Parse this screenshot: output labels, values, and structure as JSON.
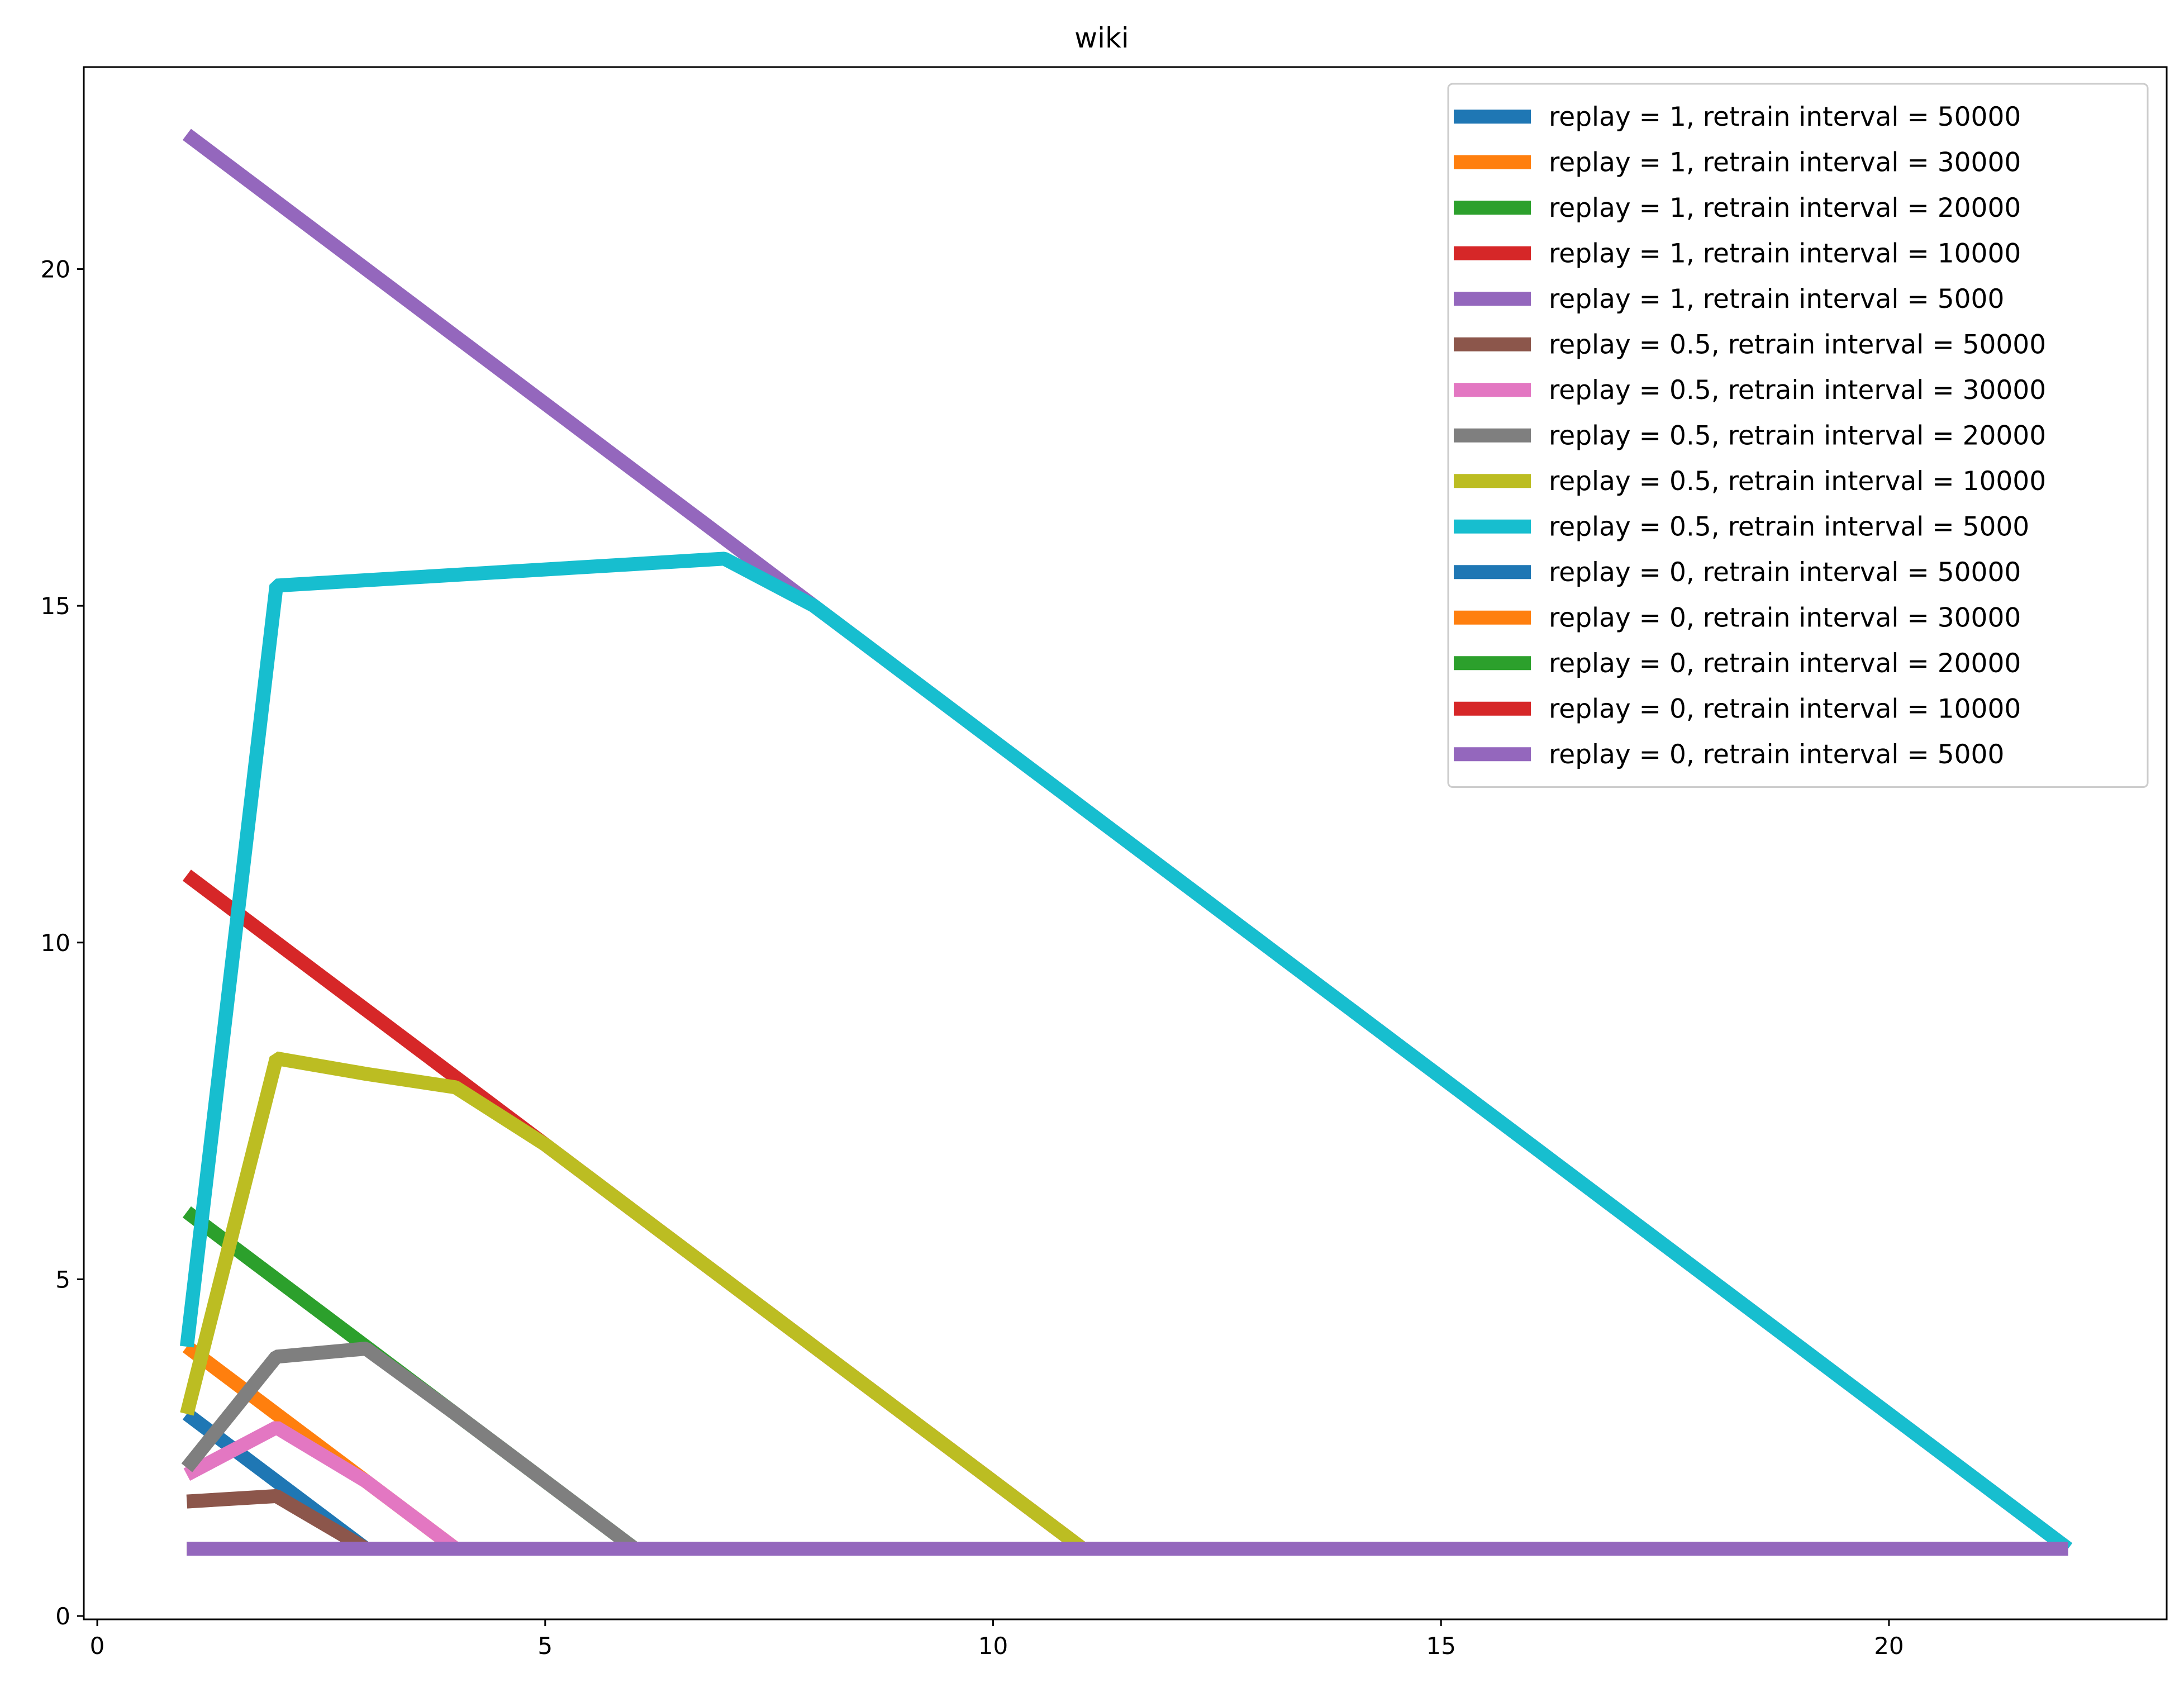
{
  "chart_data": {
    "type": "line",
    "title": "wiki",
    "xlabel": "",
    "ylabel": "",
    "xlim": [
      -0.15,
      23.1
    ],
    "ylim": [
      -0.05,
      23.0
    ],
    "x_ticks": [
      0,
      5,
      10,
      15,
      20
    ],
    "y_ticks": [
      0,
      5,
      10,
      15,
      20
    ],
    "legend_position": "upper-right",
    "grid": false,
    "series": [
      {
        "name": "replay = 1, retrain interval = 50000",
        "color": "#1f77b4",
        "x": [
          1,
          2,
          3
        ],
        "y": [
          3,
          2,
          1
        ]
      },
      {
        "name": "replay = 1, retrain interval = 30000",
        "color": "#ff7f0e",
        "x": [
          1,
          2,
          3,
          4
        ],
        "y": [
          4,
          3,
          2,
          1
        ]
      },
      {
        "name": "replay = 1, retrain interval = 20000",
        "color": "#2ca02c",
        "x": [
          1,
          2,
          3,
          4,
          5,
          6
        ],
        "y": [
          6,
          5,
          4,
          3,
          2,
          1
        ]
      },
      {
        "name": "replay = 1, retrain interval = 10000",
        "color": "#d62728",
        "x": [
          1,
          2,
          3,
          4,
          5,
          6,
          7,
          8,
          9,
          10,
          11
        ],
        "y": [
          11,
          10,
          9,
          8,
          7,
          6,
          5,
          4,
          3,
          2,
          1
        ]
      },
      {
        "name": "replay = 1, retrain interval = 5000",
        "color": "#9467bd",
        "x": [
          1,
          2,
          3,
          4,
          5,
          6,
          7,
          8,
          9,
          10,
          11,
          12,
          13,
          14,
          15,
          16,
          17,
          18,
          19,
          20,
          21,
          22
        ],
        "y": [
          22,
          21,
          20,
          19,
          18,
          17,
          16,
          15,
          14,
          13,
          12,
          11,
          10,
          9,
          8,
          7,
          6,
          5,
          4,
          3,
          2,
          1
        ]
      },
      {
        "name": "replay = 0.5, retrain interval = 50000",
        "color": "#8c564b",
        "x": [
          1,
          2,
          3
        ],
        "y": [
          1.7,
          1.78,
          1
        ]
      },
      {
        "name": "replay = 0.5, retrain interval = 30000",
        "color": "#e377c2",
        "x": [
          1,
          2,
          3,
          4
        ],
        "y": [
          2.1,
          2.8,
          2,
          1
        ]
      },
      {
        "name": "replay = 0.5, retrain interval = 20000",
        "color": "#7f7f7f",
        "x": [
          1,
          2,
          3,
          4,
          5,
          6
        ],
        "y": [
          2.2,
          3.85,
          3.97,
          3,
          2,
          1
        ]
      },
      {
        "name": "replay = 0.5, retrain interval = 10000",
        "color": "#bcbd22",
        "x": [
          1,
          2,
          3,
          4,
          5,
          6,
          7,
          8,
          9,
          10,
          11
        ],
        "y": [
          3,
          8.28,
          8.05,
          7.85,
          7,
          6,
          5,
          4,
          3,
          2,
          1
        ]
      },
      {
        "name": "replay = 0.5, retrain interval = 5000",
        "color": "#17becf",
        "x": [
          1,
          2,
          7,
          8,
          9,
          10,
          11,
          12,
          13,
          14,
          15,
          16,
          17,
          18,
          19,
          20,
          21,
          22
        ],
        "y": [
          4,
          15.3,
          15.7,
          15,
          14,
          13,
          12,
          11,
          10,
          9,
          8,
          7,
          6,
          5,
          4,
          3,
          2,
          1
        ]
      },
      {
        "name": "replay = 0, retrain interval = 50000",
        "color": "#1f77b4",
        "x": [
          1,
          2,
          3
        ],
        "y": [
          1,
          1,
          1
        ]
      },
      {
        "name": "replay = 0, retrain interval = 30000",
        "color": "#ff7f0e",
        "x": [
          1,
          2,
          3,
          4
        ],
        "y": [
          1,
          1,
          1,
          1
        ]
      },
      {
        "name": "replay = 0, retrain interval = 20000",
        "color": "#2ca02c",
        "x": [
          1,
          2,
          3,
          4,
          5,
          6
        ],
        "y": [
          1,
          1,
          1,
          1,
          1,
          1
        ]
      },
      {
        "name": "replay = 0, retrain interval = 10000",
        "color": "#d62728",
        "x": [
          1,
          2,
          3,
          4,
          5,
          6,
          7,
          8,
          9,
          10,
          11
        ],
        "y": [
          1,
          1,
          1,
          1,
          1,
          1,
          1,
          1,
          1,
          1,
          1
        ]
      },
      {
        "name": "replay = 0, retrain interval = 5000",
        "color": "#9467bd",
        "x": [
          1,
          2,
          3,
          4,
          5,
          6,
          7,
          8,
          9,
          10,
          11,
          12,
          13,
          14,
          15,
          16,
          17,
          18,
          19,
          20,
          21,
          22
        ],
        "y": [
          1,
          1,
          1,
          1,
          1,
          1,
          1,
          1,
          1,
          1,
          1,
          1,
          1,
          1,
          1,
          1,
          1,
          1,
          1,
          1,
          1,
          1
        ]
      }
    ]
  }
}
